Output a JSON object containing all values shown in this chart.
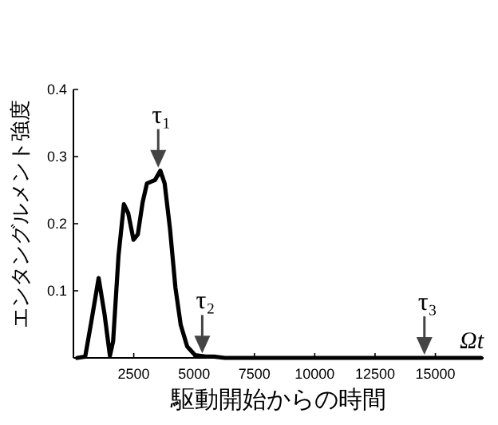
{
  "chart_data": {
    "type": "line",
    "xlabel": "駆動開始からの時間",
    "ylabel": "エンタングルメント強度",
    "x": [
      156,
      489,
      756,
      1045,
      1290,
      1512,
      1646,
      1868,
      2091,
      2268,
      2491,
      2669,
      2869,
      3047,
      3380,
      3603,
      3781,
      4003,
      4226,
      4448,
      4715,
      5048,
      5493,
      5827,
      6272,
      16900
    ],
    "series": [
      {
        "color": "#000000",
        "values": [
          0,
          0.002,
          0.057,
          0.119,
          0.065,
          0.003,
          0.025,
          0.152,
          0.229,
          0.216,
          0.176,
          0.184,
          0.232,
          0.26,
          0.265,
          0.279,
          0.26,
          0.192,
          0.105,
          0.049,
          0.017,
          0.004,
          0.002,
          0.002,
          0,
          0
        ]
      }
    ],
    "xlim": [
      0,
      17000
    ],
    "ylim": [
      0,
      0.4
    ],
    "xticks": [
      2500,
      5000,
      7500,
      10000,
      12500,
      15000
    ],
    "yticks": [
      0.1,
      0.2,
      0.3,
      0.4
    ],
    "grid": false,
    "marker": "none",
    "line_style": "solid",
    "annotations": [
      {
        "text": "τ₁",
        "x": 3514,
        "y": 0.279
      },
      {
        "text": "τ₂",
        "x": 5338,
        "y": 0.002
      },
      {
        "text": "τ₃",
        "x": 14545,
        "y": 0
      },
      "Ωt"
    ]
  }
}
